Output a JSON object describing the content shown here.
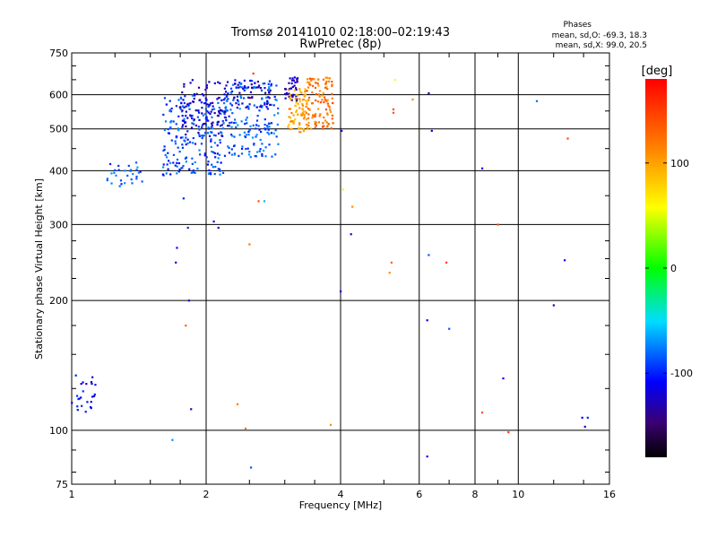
{
  "chart_data": {
    "type": "scatter",
    "title": "Tromsø 20141010 02:18:00–02:19:43",
    "subtitle": "RwPretec (8p)",
    "xlabel": "Frequency [MHz]",
    "ylabel": "Stationary phase Virtual Height [km]",
    "x_scale": "log",
    "y_scale": "log",
    "xlim": [
      1,
      16
    ],
    "ylim": [
      75,
      750
    ],
    "grid": true,
    "x_ticks": [
      1,
      2,
      4,
      6,
      8,
      10,
      16
    ],
    "x_tick_labels": [
      "1",
      "2",
      "4",
      "6",
      "8",
      "10",
      "16"
    ],
    "y_ticks": [
      75,
      100,
      200,
      300,
      400,
      500,
      600,
      750
    ],
    "y_tick_labels": [
      "75",
      "100",
      "200",
      "300",
      "400",
      "500",
      "600",
      "750"
    ],
    "stats": {
      "header": "Phases",
      "line_o": "mean, sd,O: -69.3, 18.3",
      "line_x": "mean, sd,X:  99.0, 20.5"
    },
    "colorbar": {
      "label": "[deg]",
      "range": [
        -180,
        180
      ],
      "ticks": [
        100,
        0,
        -100
      ],
      "tick_labels": [
        "100",
        "0",
        "-100"
      ]
    },
    "clusters": [
      {
        "x_range": [
          1.0,
          1.13
        ],
        "y_range": [
          108,
          138
        ],
        "phase": -110,
        "count": 25
      },
      {
        "x_range": [
          1.2,
          1.45
        ],
        "y_range": [
          368,
          418
        ],
        "phase": -85,
        "count": 30
      },
      {
        "x_range": [
          1.6,
          2.2
        ],
        "y_range": [
          390,
          600
        ],
        "phase": -90,
        "count": 220
      },
      {
        "x_range": [
          1.75,
          2.25
        ],
        "y_range": [
          480,
          650
        ],
        "phase": -125,
        "count": 90
      },
      {
        "x_range": [
          2.2,
          2.9
        ],
        "y_range": [
          430,
          650
        ],
        "phase": -85,
        "count": 180
      },
      {
        "x_range": [
          2.3,
          2.8
        ],
        "y_range": [
          560,
          650
        ],
        "phase": -125,
        "count": 45
      },
      {
        "x_range": [
          3.0,
          3.22
        ],
        "y_range": [
          580,
          660
        ],
        "phase": -130,
        "count": 35
      },
      {
        "x_range": [
          3.05,
          3.4
        ],
        "y_range": [
          490,
          620
        ],
        "phase": 100,
        "count": 80
      },
      {
        "x_range": [
          3.35,
          3.85
        ],
        "y_range": [
          500,
          660
        ],
        "phase": 120,
        "count": 110
      }
    ],
    "points": [
      {
        "x": 1.68,
        "y": 95,
        "phase": -70
      },
      {
        "x": 1.78,
        "y": 345,
        "phase": -100
      },
      {
        "x": 1.72,
        "y": 265,
        "phase": -110
      },
      {
        "x": 1.71,
        "y": 245,
        "phase": -110
      },
      {
        "x": 1.82,
        "y": 295,
        "phase": -100
      },
      {
        "x": 1.83,
        "y": 200,
        "phase": -110
      },
      {
        "x": 1.8,
        "y": 175,
        "phase": 130
      },
      {
        "x": 1.85,
        "y": 112,
        "phase": -130
      },
      {
        "x": 2.08,
        "y": 305,
        "phase": -120
      },
      {
        "x": 2.13,
        "y": 295,
        "phase": -120
      },
      {
        "x": 2.35,
        "y": 115,
        "phase": 120
      },
      {
        "x": 2.45,
        "y": 101,
        "phase": 120
      },
      {
        "x": 2.5,
        "y": 270,
        "phase": 120
      },
      {
        "x": 2.52,
        "y": 82,
        "phase": -85
      },
      {
        "x": 2.62,
        "y": 340,
        "phase": 140
      },
      {
        "x": 2.7,
        "y": 340,
        "phase": -60
      },
      {
        "x": 2.55,
        "y": 672,
        "phase": 150
      },
      {
        "x": 3.8,
        "y": 103,
        "phase": 110
      },
      {
        "x": 4.02,
        "y": 495,
        "phase": -110
      },
      {
        "x": 4.0,
        "y": 210,
        "phase": -110
      },
      {
        "x": 4.05,
        "y": 362,
        "phase": 60
      },
      {
        "x": 4.25,
        "y": 330,
        "phase": 110
      },
      {
        "x": 4.22,
        "y": 285,
        "phase": -120
      },
      {
        "x": 5.2,
        "y": 245,
        "phase": 130
      },
      {
        "x": 5.15,
        "y": 232,
        "phase": 110
      },
      {
        "x": 5.25,
        "y": 555,
        "phase": 140
      },
      {
        "x": 5.25,
        "y": 545,
        "phase": 140
      },
      {
        "x": 5.3,
        "y": 650,
        "phase": 60
      },
      {
        "x": 5.8,
        "y": 585,
        "phase": 110
      },
      {
        "x": 6.3,
        "y": 605,
        "phase": -120
      },
      {
        "x": 6.4,
        "y": 495,
        "phase": -120
      },
      {
        "x": 6.3,
        "y": 255,
        "phase": -85
      },
      {
        "x": 6.25,
        "y": 180,
        "phase": -110
      },
      {
        "x": 6.25,
        "y": 87,
        "phase": -110
      },
      {
        "x": 6.9,
        "y": 245,
        "phase": 150
      },
      {
        "x": 7.0,
        "y": 172,
        "phase": -85
      },
      {
        "x": 8.3,
        "y": 110,
        "phase": 140
      },
      {
        "x": 8.3,
        "y": 405,
        "phase": -110
      },
      {
        "x": 9.0,
        "y": 300,
        "phase": 140
      },
      {
        "x": 9.25,
        "y": 132,
        "phase": -110
      },
      {
        "x": 9.5,
        "y": 99,
        "phase": 150
      },
      {
        "x": 11.0,
        "y": 580,
        "phase": -80
      },
      {
        "x": 12.0,
        "y": 195,
        "phase": -125
      },
      {
        "x": 12.7,
        "y": 248,
        "phase": -110
      },
      {
        "x": 12.9,
        "y": 475,
        "phase": 140
      },
      {
        "x": 13.9,
        "y": 107,
        "phase": -110
      },
      {
        "x": 14.3,
        "y": 107,
        "phase": -100
      },
      {
        "x": 14.1,
        "y": 102,
        "phase": -125
      }
    ]
  }
}
